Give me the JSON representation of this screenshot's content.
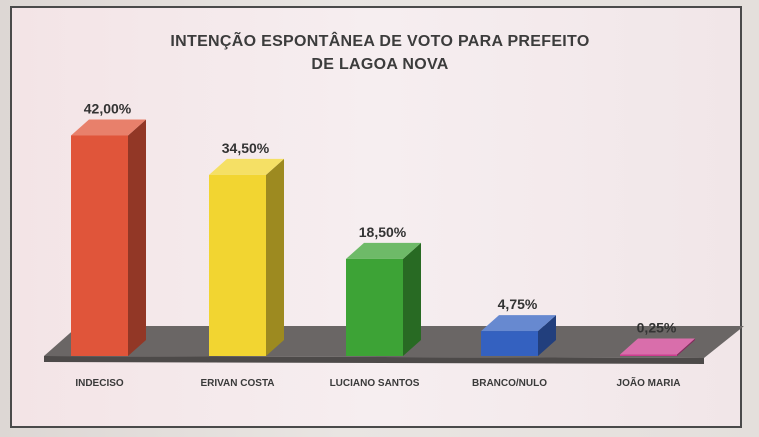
{
  "chart_data": {
    "type": "bar",
    "title": "INTENÇÃO ESPONTÂNEA DE VOTO PARA PREFEITO",
    "subtitle": "DE LAGOA NOVA",
    "categories": [
      "INDECISO",
      "ERIVAN COSTA",
      "LUCIANO SANTOS",
      "BRANCO/NULO",
      "JOÃO MARIA"
    ],
    "values": [
      42.0,
      34.5,
      18.5,
      4.75,
      0.25
    ],
    "data_labels": [
      "42,00%",
      "34,50%",
      "18,50%",
      "4,75%",
      "0,25%"
    ],
    "colors": [
      "#e0553a",
      "#f2d531",
      "#3da336",
      "#3461c0",
      "#cc3d8f"
    ],
    "ylim": [
      0,
      45
    ],
    "grid": false,
    "legend": "none",
    "style": "3d-column"
  }
}
